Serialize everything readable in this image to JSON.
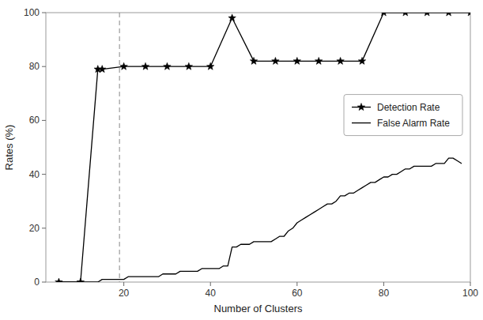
{
  "chart_data": {
    "type": "line",
    "x_label": "Number of Clusters",
    "y_label": "Rates (%)",
    "series": [
      {
        "name": "Detection Rate",
        "color": "#000000",
        "marker": "star",
        "line_style": "solid",
        "x": [
          5,
          10,
          14,
          15,
          20,
          25,
          30,
          35,
          40,
          45,
          50,
          55,
          60,
          65,
          70,
          75,
          80,
          85,
          90,
          95,
          100
        ],
        "values": [
          0,
          0,
          79,
          79,
          80,
          80,
          80,
          80,
          80,
          98,
          82,
          82,
          82,
          82,
          82,
          82,
          100,
          100,
          100,
          100,
          100
        ]
      },
      {
        "name": "False Alarm Rate",
        "color": "#000000",
        "marker": "none",
        "line_style": "solid",
        "x": [
          5,
          10,
          14,
          15,
          16,
          17,
          18,
          19,
          20,
          21,
          22,
          23,
          24,
          25,
          26,
          27,
          28,
          29,
          30,
          31,
          32,
          33,
          34,
          35,
          36,
          37,
          38,
          39,
          40,
          41,
          42,
          43,
          44,
          45,
          46,
          47,
          48,
          49,
          50,
          51,
          52,
          53,
          54,
          55,
          56,
          57,
          58,
          59,
          60,
          61,
          62,
          63,
          64,
          65,
          66,
          67,
          68,
          69,
          70,
          71,
          72,
          73,
          74,
          75,
          76,
          77,
          78,
          79,
          80,
          81,
          82,
          83,
          84,
          85,
          86,
          87,
          88,
          89,
          90,
          91,
          92,
          93,
          94,
          95,
          96,
          97,
          98
        ],
        "values": [
          0,
          0,
          0,
          1,
          1,
          1,
          1,
          1,
          1,
          2,
          2,
          2,
          2,
          2,
          2,
          2,
          2,
          3,
          3,
          3,
          3,
          4,
          4,
          4,
          4,
          4,
          5,
          5,
          5,
          5,
          5,
          6,
          6,
          13,
          13,
          14,
          14,
          14,
          15,
          15,
          15,
          15,
          15,
          16,
          17,
          17,
          19,
          20,
          22,
          23,
          24,
          25,
          26,
          27,
          28,
          29,
          29,
          30,
          32,
          32,
          33,
          33,
          34,
          35,
          36,
          37,
          37,
          38,
          39,
          39,
          40,
          40,
          41,
          42,
          42,
          43,
          43,
          43,
          43,
          43,
          44,
          44,
          44,
          46,
          46,
          45,
          44
        ]
      }
    ],
    "vertical_line": {
      "x": 19,
      "color": "#888888",
      "line_style": "dashed"
    },
    "xlim": [
      2,
      100
    ],
    "ylim": [
      0,
      100
    ],
    "xticks": [
      20,
      40,
      60,
      80,
      100
    ],
    "yticks": [
      0,
      20,
      40,
      60,
      80,
      100
    ],
    "grid": false,
    "legend": "right"
  }
}
